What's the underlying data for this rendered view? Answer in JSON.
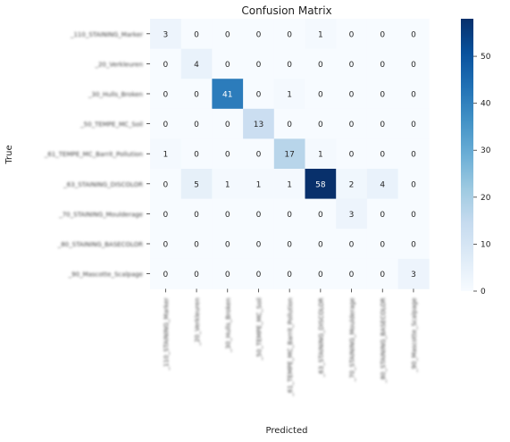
{
  "chart_data": {
    "type": "heatmap",
    "title": "Confusion Matrix",
    "xlabel": "Predicted",
    "ylabel": "True",
    "row_labels": [
      "_110_STAINING_Marker",
      "_20_Verkleuren",
      "_30_Hulls_Broken",
      "_50_TEMPE_MC_Soil",
      "_61_TEMPE_MC_Barrit_Pollution",
      "_63_STAINING_DISCOLOR",
      "_70_STAINING_Moulderage",
      "_80_STAINING_BASECOLOR",
      "_90_Mascotte_Scalpage"
    ],
    "col_labels": [
      "_110_STAINING_Marker",
      "_20_Verkleuren",
      "_30_Hulls_Broken",
      "_50_TEMPE_MC_Soil",
      "_61_TEMPE_MC_Barrit_Pollution",
      "_63_STAINING_DISCOLOR",
      "_70_STAINING_Moulderage",
      "_80_STAINING_BASECOLOR",
      "_90_Mascotte_Scalpage"
    ],
    "matrix": [
      [
        3,
        0,
        0,
        0,
        0,
        1,
        0,
        0,
        0
      ],
      [
        0,
        4,
        0,
        0,
        0,
        0,
        0,
        0,
        0
      ],
      [
        0,
        0,
        41,
        0,
        1,
        0,
        0,
        0,
        0
      ],
      [
        0,
        0,
        0,
        13,
        0,
        0,
        0,
        0,
        0
      ],
      [
        1,
        0,
        0,
        0,
        17,
        1,
        0,
        0,
        0
      ],
      [
        0,
        5,
        1,
        1,
        1,
        58,
        2,
        4,
        0
      ],
      [
        0,
        0,
        0,
        0,
        0,
        0,
        3,
        0,
        0
      ],
      [
        0,
        0,
        0,
        0,
        0,
        0,
        0,
        0,
        0
      ],
      [
        0,
        0,
        0,
        0,
        0,
        0,
        0,
        0,
        3
      ]
    ],
    "colorbar": {
      "range": [
        0,
        58
      ],
      "ticks": [
        0,
        10,
        20,
        30,
        40,
        50
      ],
      "colormap": "Blues",
      "colors": [
        "#f7fbff",
        "#deebf7",
        "#c6dbef",
        "#9ecae1",
        "#6baed6",
        "#4292c6",
        "#2171b5",
        "#08519c",
        "#08306b"
      ]
    }
  }
}
